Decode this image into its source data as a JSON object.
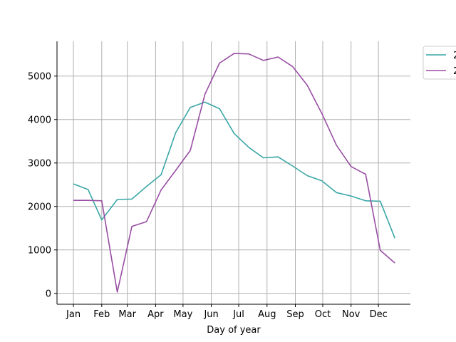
{
  "chart_data": {
    "type": "line",
    "title": "",
    "xlabel": "Day of year",
    "ylabel": "",
    "x_tick_labels": [
      "Jan",
      "Feb",
      "Mar",
      "Apr",
      "May",
      "Jun",
      "Jul",
      "Aug",
      "Sep",
      "Oct",
      "Nov",
      "Dec"
    ],
    "x_tick_days": [
      1,
      32,
      60,
      91,
      121,
      152,
      182,
      213,
      244,
      274,
      305,
      335
    ],
    "x_range": [
      -17,
      370
    ],
    "y_ticks": [
      0,
      1000,
      2000,
      3000,
      4000,
      5000
    ],
    "y_tick_labels": [
      "0",
      "1000",
      "2000",
      "3000",
      "4000",
      "5000"
    ],
    "ylim": [
      -250,
      5800
    ],
    "grid": true,
    "legend_position": "outside-top-right",
    "x": [
      1,
      17,
      32,
      49,
      65,
      81,
      97,
      113,
      129,
      145,
      161,
      177,
      193,
      209,
      225,
      241,
      257,
      273,
      289,
      305,
      321,
      337,
      353
    ],
    "series": [
      {
        "name": "2",
        "color": "#3aa6a6",
        "values": [
          2520,
          2390,
          1690,
          2160,
          2170,
          2460,
          2730,
          3700,
          4280,
          4400,
          4250,
          3680,
          3360,
          3120,
          3140,
          2930,
          2710,
          2590,
          2320,
          2240,
          2130,
          2120,
          1270
        ]
      },
      {
        "name": "2",
        "color": "#984ea3",
        "values": [
          2140,
          2140,
          2130,
          30,
          1540,
          1650,
          2380,
          2830,
          3290,
          4580,
          5300,
          5520,
          5510,
          5360,
          5440,
          5220,
          4790,
          4140,
          3410,
          2920,
          2740,
          990,
          700
        ]
      }
    ]
  }
}
